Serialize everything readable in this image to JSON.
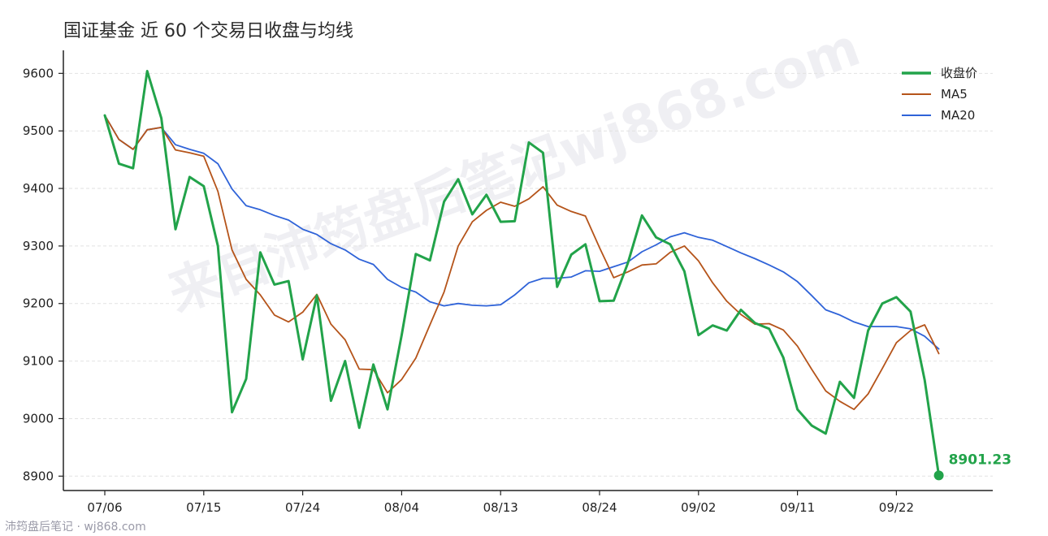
{
  "chart_data": {
    "type": "line",
    "title": "国证基金 近 60 个交易日收盘与均线",
    "xlabel": "",
    "ylabel": "",
    "ylim": [
      8875,
      9640
    ],
    "yticks": [
      8900,
      9000,
      9100,
      9200,
      9300,
      9400,
      9500,
      9600
    ],
    "x_tick_labels": [
      "07/06",
      "07/15",
      "07/24",
      "08/04",
      "08/13",
      "08/24",
      "09/02",
      "09/11",
      "09/22"
    ],
    "x_tick_index": [
      0,
      7,
      14,
      21,
      28,
      35,
      42,
      49,
      56
    ],
    "grid": "horizontal-dashed",
    "legend_position": "top-right",
    "series": [
      {
        "name": "收盘价",
        "color": "#22a34a",
        "values": [
          9527,
          9443,
          9435,
          9604,
          9522,
          9329,
          9420,
          9404,
          9300,
          9011,
          9069,
          9289,
          9233,
          9239,
          9103,
          9214,
          9031,
          9100,
          8984,
          9094,
          9016,
          9145,
          9286,
          9275,
          9377,
          9416,
          9355,
          9389,
          9342,
          9343,
          9480,
          9462,
          9229,
          9285,
          9303,
          9204,
          9205,
          9270,
          9353,
          9315,
          9303,
          9256,
          9145,
          9162,
          9153,
          9189,
          9166,
          9156,
          9106,
          9016,
          8988,
          8974,
          9064,
          9036,
          9153,
          9200,
          9211,
          9186,
          9067,
          8901.23
        ]
      },
      {
        "name": "MA5",
        "color": "#b5541a",
        "values": [
          9527,
          9485,
          9468,
          9502,
          9506,
          9467,
          9462,
          9456,
          9395,
          9293,
          9242,
          9215,
          9180,
          9168,
          9185,
          9216,
          9164,
          9137,
          9086,
          9085,
          9045,
          9068,
          9105,
          9163,
          9220,
          9300,
          9342,
          9362,
          9376,
          9369,
          9382,
          9403,
          9371,
          9360,
          9352,
          9297,
          9245,
          9255,
          9267,
          9269,
          9289,
          9300,
          9274,
          9236,
          9204,
          9181,
          9164,
          9165,
          9154,
          9126,
          9086,
          9048,
          9030,
          9016,
          9043,
          9087,
          9132,
          9153,
          9163,
          9113
        ]
      },
      {
        "name": "MA20",
        "color": "#2f63d8",
        "values": [
          9527,
          9485,
          9468,
          9502,
          9506,
          9476,
          9468,
          9461,
          9443,
          9399,
          9370,
          9363,
          9353,
          9345,
          9329,
          9320,
          9304,
          9293,
          9277,
          9268,
          9242,
          9228,
          9220,
          9203,
          9196,
          9200,
          9197,
          9196,
          9198,
          9215,
          9236,
          9244,
          9244,
          9246,
          9257,
          9256,
          9264,
          9272,
          9290,
          9302,
          9316,
          9323,
          9315,
          9310,
          9299,
          9288,
          9278,
          9267,
          9255,
          9238,
          9214,
          9189,
          9180,
          9168,
          9160,
          9160,
          9160,
          9156,
          9143,
          9121
        ]
      }
    ],
    "last_point_label": "8901.23"
  },
  "watermark": "来自沛筠盘后笔记wj868.com",
  "footer_text": "沛筠盘后笔记 · wj868.com"
}
